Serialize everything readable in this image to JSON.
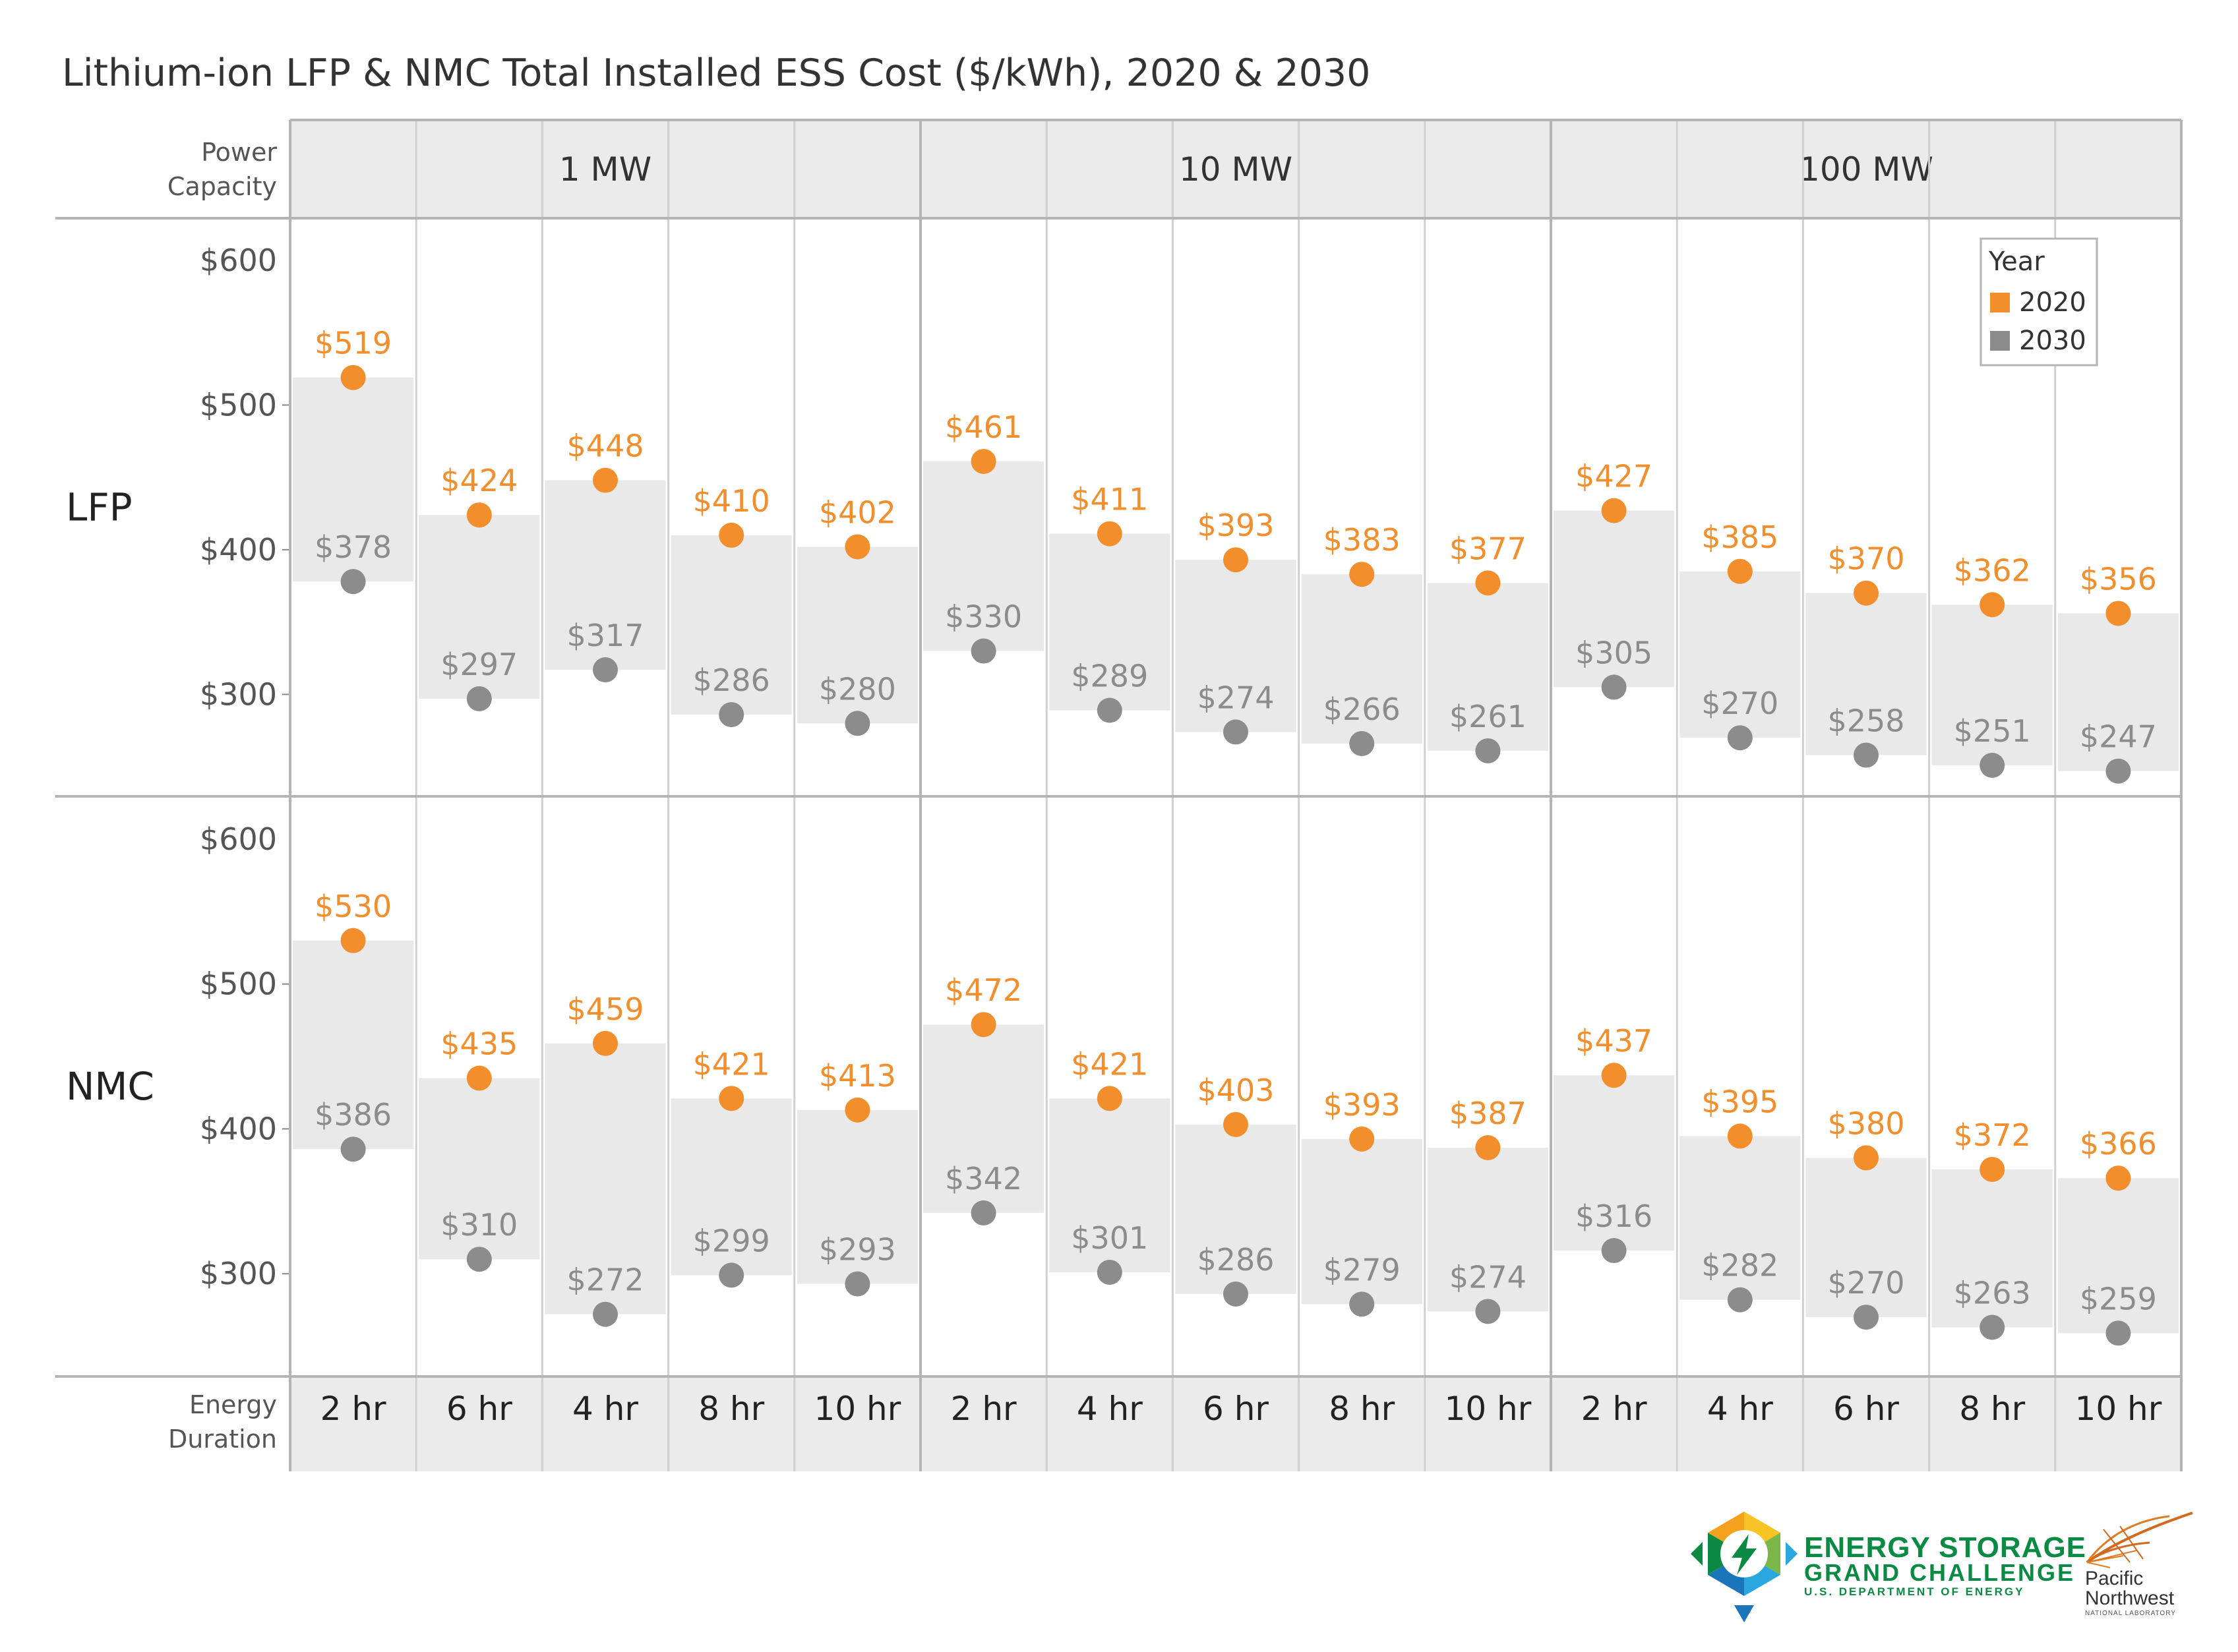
{
  "chart_data": {
    "type": "scatter",
    "title": "Lithium-ion LFP & NMC Total Installed ESS Cost ($/kWh), 2020 & 2030",
    "column_header_label": [
      "Power",
      "Capacity"
    ],
    "row_footer_label": [
      "Energy",
      "Duration"
    ],
    "power_capacities": [
      {
        "label": "1 MW",
        "durations": [
          "2 hr",
          "6 hr",
          "4 hr",
          "8 hr",
          "10 hr"
        ]
      },
      {
        "label": "10 MW",
        "durations": [
          "2 hr",
          "4 hr",
          "6 hr",
          "8 hr",
          "10 hr"
        ]
      },
      {
        "label": "100 MW",
        "durations": [
          "2 hr",
          "4 hr",
          "6 hr",
          "8 hr",
          "10 hr"
        ]
      }
    ],
    "y_ticks": [
      600,
      500,
      400,
      300
    ],
    "y_tick_labels": [
      "$600",
      "$500",
      "$400",
      "$300"
    ],
    "ylim": [
      230,
      615
    ],
    "legend": {
      "title": "Year",
      "position": "top-right",
      "items": [
        {
          "label": "2020",
          "color": "#f28e2b"
        },
        {
          "label": "2030",
          "color": "#8c8c8c"
        }
      ]
    },
    "colors": {
      "2020": "#f28e2b",
      "2030": "#8c8c8c",
      "band": "#e9e9e9",
      "header": "#ebebeb"
    },
    "rows": [
      {
        "name": "LFP",
        "series": [
          {
            "name": "2020",
            "values": [
              519,
              424,
              448,
              410,
              402,
              461,
              411,
              393,
              383,
              377,
              427,
              385,
              370,
              362,
              356
            ],
            "labels": [
              "$519",
              "$424",
              "$448",
              "$410",
              "$402",
              "$461",
              "$411",
              "$393",
              "$383",
              "$377",
              "$427",
              "$385",
              "$370",
              "$362",
              "$356"
            ]
          },
          {
            "name": "2030",
            "values": [
              378,
              297,
              317,
              286,
              280,
              330,
              289,
              274,
              266,
              261,
              305,
              270,
              258,
              251,
              247
            ],
            "labels": [
              "$378",
              "$297",
              "$317",
              "$286",
              "$280",
              "$330",
              "$289",
              "$274",
              "$266",
              "$261",
              "$305",
              "$270",
              "$258",
              "$251",
              "$247"
            ]
          }
        ]
      },
      {
        "name": "NMC",
        "series": [
          {
            "name": "2020",
            "values": [
              530,
              435,
              459,
              421,
              413,
              472,
              421,
              403,
              393,
              387,
              437,
              395,
              380,
              372,
              366
            ],
            "labels": [
              "$530",
              "$435",
              "$459",
              "$421",
              "$413",
              "$472",
              "$421",
              "$403",
              "$393",
              "$387",
              "$437",
              "$395",
              "$380",
              "$372",
              "$366"
            ]
          },
          {
            "name": "2030",
            "values": [
              386,
              310,
              272,
              299,
              293,
              342,
              301,
              286,
              279,
              274,
              316,
              282,
              270,
              263,
              259
            ],
            "labels": [
              "$386",
              "$310",
              "$272",
              "$299",
              "$293",
              "$342",
              "$301",
              "$286",
              "$279",
              "$274",
              "$316",
              "$282",
              "$270",
              "$263",
              "$259"
            ]
          }
        ]
      }
    ]
  },
  "logos": {
    "esgc": {
      "line1": "ENERGY STORAGE",
      "line2": "GRAND CHALLENGE",
      "line3": "U.S. DEPARTMENT OF ENERGY"
    },
    "pnnl": {
      "line1": "Pacific",
      "line2": "Northwest",
      "line3": "NATIONAL LABORATORY"
    }
  }
}
